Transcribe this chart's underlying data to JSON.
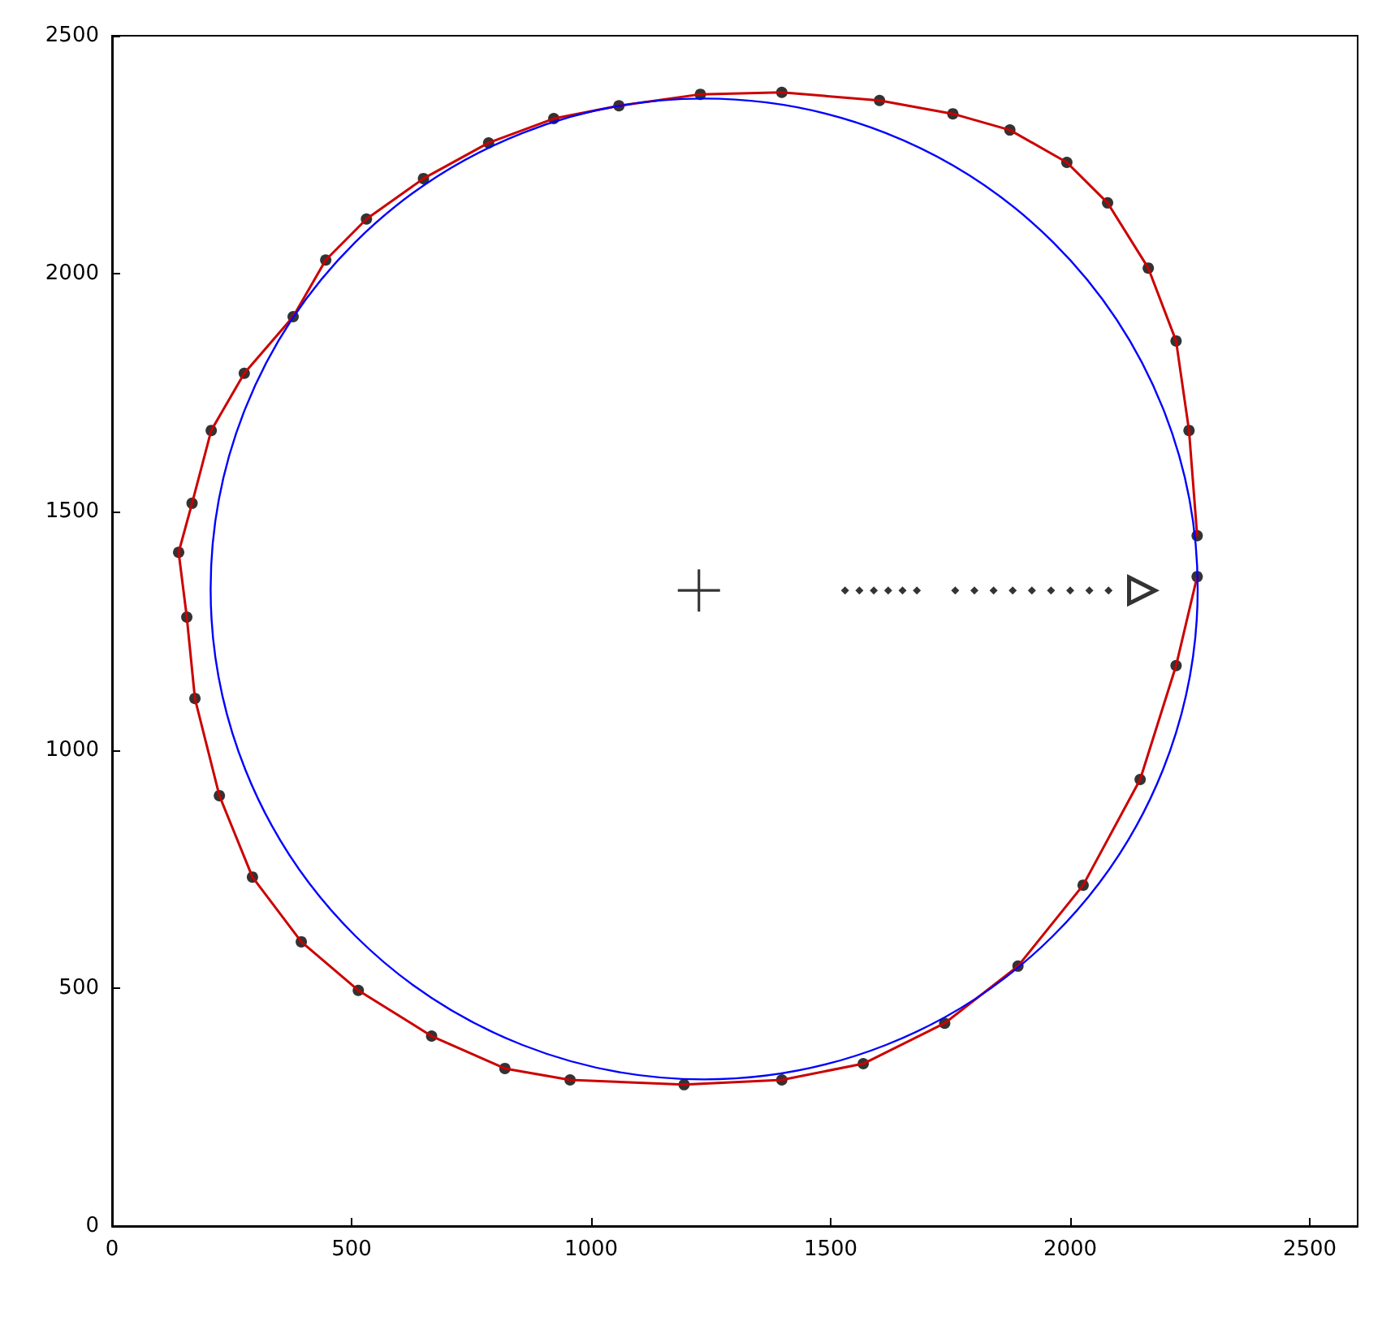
{
  "chart_data": {
    "type": "scatter",
    "xlim": [
      0,
      2600
    ],
    "ylim": [
      0,
      2500
    ],
    "xticks": [
      0,
      500,
      1000,
      1500,
      2000,
      2500
    ],
    "yticks": [
      0,
      500,
      1000,
      1500,
      2000,
      2500
    ],
    "grid": false,
    "line_style": "solid",
    "series": [
      {
        "color": "#000000",
        "marker": "circle",
        "x": [
          2265,
          2248,
          2221,
          2163,
          2078,
          1993,
          1874,
          1755,
          1602,
          1398,
          1228,
          1058,
          922,
          786,
          650,
          531,
          446,
          378,
          276,
          207,
          167,
          139,
          156,
          173,
          224,
          293,
          395,
          514,
          667,
          820,
          956,
          1194,
          1398,
          1568,
          1738,
          1891,
          2027,
          2146,
          2221,
          2265
        ],
        "values": [
          1450,
          1671,
          1859,
          2012,
          2149,
          2234,
          2302,
          2336,
          2364,
          2381,
          2377,
          2353,
          2326,
          2275,
          2200,
          2115,
          2029,
          1910,
          1791,
          1671,
          1518,
          1415,
          1279,
          1108,
          904,
          733,
          597,
          495,
          399,
          331,
          307,
          297,
          307,
          341,
          426,
          546,
          716,
          938,
          1177,
          1364
        ]
      },
      {
        "type": "line",
        "color": "#cc0000",
        "marker": "none",
        "x": [
          139,
          167,
          207,
          276,
          378,
          446,
          531,
          650,
          786,
          922,
          1058,
          1228,
          1398,
          1602,
          1755,
          1874,
          1993,
          2078,
          2163,
          2221,
          2248,
          2265
        ],
        "values": [
          1415,
          1518,
          1671,
          1791,
          1910,
          2029,
          2115,
          2200,
          2275,
          2326,
          2353,
          2377,
          2381,
          2364,
          2336,
          2302,
          2234,
          2149,
          2012,
          1859,
          1671,
          1450
        ]
      },
      {
        "type": "line",
        "color": "#cc0000",
        "marker": "none",
        "x": [
          139,
          156,
          173,
          224,
          293,
          395,
          514,
          667,
          820,
          956,
          1194,
          1398,
          1568,
          1738,
          1891,
          2027,
          2146,
          2221,
          2265
        ],
        "values": [
          1415,
          1279,
          1108,
          904,
          733,
          597,
          495,
          399,
          331,
          307,
          297,
          307,
          341,
          426,
          546,
          716,
          938,
          1177,
          1364
        ]
      },
      {
        "color": "#000000",
        "marker": "cross",
        "x": [
          1225
        ],
        "values": [
          1335
        ]
      },
      {
        "color": "#000000",
        "marker": "diamond",
        "x": [
          1530,
          1560,
          1590,
          1620,
          1650,
          1680,
          1760,
          1800,
          1840,
          1880,
          1920,
          1960,
          2000,
          2040,
          2080
        ],
        "values": [
          1335,
          1335,
          1335,
          1335,
          1335,
          1335,
          1335,
          1335,
          1335,
          1335,
          1335,
          1335,
          1335,
          1335,
          1335
        ]
      },
      {
        "color": "#000000",
        "marker": "triangle",
        "x": [
          2150
        ],
        "values": [
          1335
        ]
      }
    ]
  }
}
